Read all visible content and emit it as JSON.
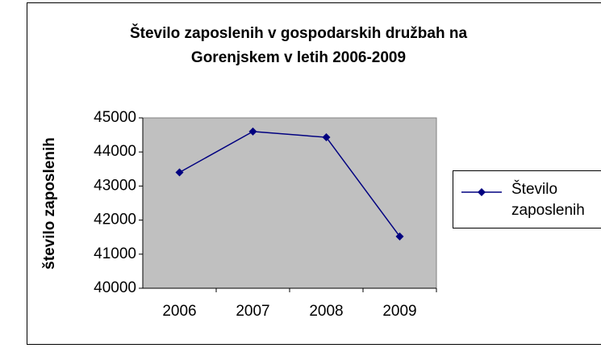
{
  "chart_data": {
    "type": "line",
    "title": "Število zaposlenih v gospodarskih družbah na Gorenjskem v letih 2006-2009",
    "y_label": "število zaposlenih",
    "categories": [
      "2006",
      "2007",
      "2008",
      "2009"
    ],
    "series": [
      {
        "name": "Število zaposlenih",
        "color": "#000080",
        "values": [
          43400,
          44600,
          44430,
          41520
        ]
      }
    ],
    "ylim": [
      40000,
      45000
    ],
    "yticks": [
      40000,
      41000,
      42000,
      43000,
      44000,
      45000
    ],
    "grid": false,
    "legend": "right"
  }
}
